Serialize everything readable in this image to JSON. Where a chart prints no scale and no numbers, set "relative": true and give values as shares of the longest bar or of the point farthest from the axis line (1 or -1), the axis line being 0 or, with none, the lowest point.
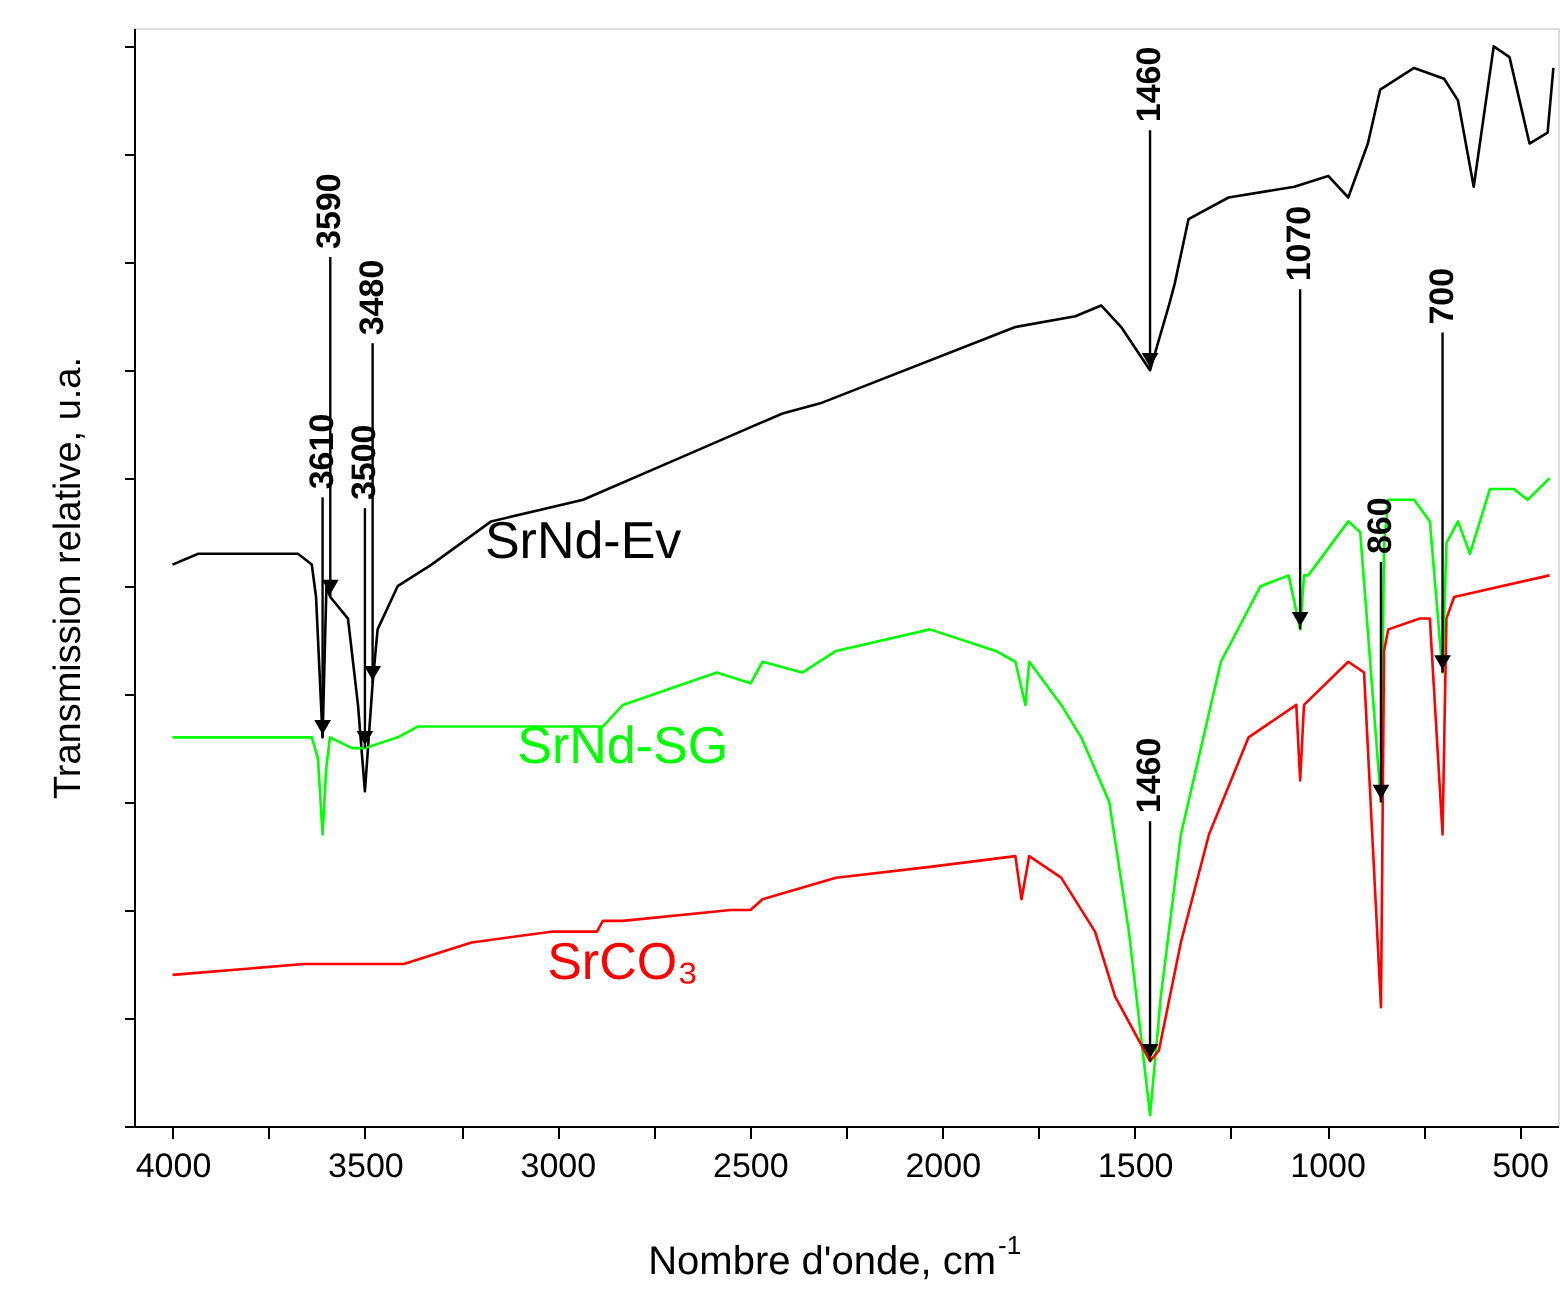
{
  "chart_data": {
    "type": "line",
    "relative": true,
    "xlabel": "Nombre d'onde, cm$^{-1}$",
    "ylabel": "Transmission relative, u.a.",
    "xlim": [
      4100,
      400
    ],
    "xticks": [
      4000,
      {
        "value": 3750,
        "label": null
      },
      3500,
      {
        "value": 3250,
        "label": null
      },
      3000,
      {
        "value": 2750,
        "label": null
      },
      2500,
      {
        "value": 2250,
        "label": null
      },
      2000,
      {
        "value": 1750,
        "label": null
      },
      1500,
      {
        "value": 1250,
        "label": null
      },
      1000,
      {
        "value": 750,
        "label": null
      },
      500
    ],
    "grid": false,
    "marker": "none",
    "line_style": "solid",
    "series": [
      {
        "name": "SrNd-Ev",
        "color": "#000000",
        "x": [
          4000,
          3933,
          3777,
          3674,
          3638,
          3627,
          3610,
          3600,
          3590,
          3544,
          3518,
          3500,
          3480,
          3467,
          3415,
          3327,
          3172,
          2933,
          2674,
          2415,
          2312,
          1810,
          1654,
          1587,
          1535,
          1460,
          1411,
          1396,
          1360,
          1256,
          1085,
          997,
          945,
          894,
          862,
          774,
          696,
          660,
          619,
          567,
          526,
          474,
          427,
          412
        ],
        "values": [
          0.52,
          0.53,
          0.53,
          0.53,
          0.52,
          0.49,
          0.36,
          0.5,
          0.49,
          0.47,
          0.39,
          0.31,
          0.41,
          0.46,
          0.5,
          0.52,
          0.56,
          0.58,
          0.62,
          0.66,
          0.67,
          0.74,
          0.75,
          0.76,
          0.74,
          0.7,
          0.76,
          0.78,
          0.84,
          0.86,
          0.87,
          0.88,
          0.86,
          0.91,
          0.96,
          0.98,
          0.97,
          0.95,
          0.87,
          1.0,
          0.99,
          0.91,
          0.92,
          0.98
        ]
      },
      {
        "name": "SrNd-SG",
        "color": "#00ff00",
        "x": [
          4000,
          3865,
          3710,
          3638,
          3622,
          3610,
          3601,
          3591,
          3534,
          3500,
          3415,
          3363,
          3016,
          2933,
          2882,
          2830,
          2586,
          2498,
          2467,
          2364,
          2276,
          2032,
          1861,
          1810,
          1784,
          1774,
          1691,
          1639,
          1566,
          1515,
          1460,
          1432,
          1380,
          1276,
          1173,
          1100,
          1070,
          1060,
          1049,
          945,
          914,
          860,
          852,
          841,
          774,
          733,
          700,
          690,
          660,
          629,
          577,
          515,
          479,
          422
        ],
        "values": [
          0.36,
          0.36,
          0.36,
          0.36,
          0.34,
          0.27,
          0.33,
          0.36,
          0.35,
          0.35,
          0.36,
          0.37,
          0.37,
          0.37,
          0.37,
          0.39,
          0.42,
          0.41,
          0.43,
          0.42,
          0.44,
          0.46,
          0.44,
          0.43,
          0.39,
          0.43,
          0.39,
          0.36,
          0.3,
          0.18,
          0.01,
          0.12,
          0.27,
          0.43,
          0.5,
          0.51,
          0.46,
          0.51,
          0.51,
          0.56,
          0.55,
          0.3,
          0.54,
          0.58,
          0.58,
          0.56,
          0.42,
          0.54,
          0.56,
          0.53,
          0.59,
          0.59,
          0.58,
          0.6
        ]
      },
      {
        "name": "SrCO₃",
        "color": "#ff0000",
        "x": [
          4000,
          3658,
          3451,
          3399,
          3223,
          3016,
          2897,
          2882,
          2830,
          2550,
          2498,
          2467,
          2276,
          2032,
          1810,
          1794,
          1774,
          1691,
          1603,
          1551,
          1460,
          1437,
          1380,
          1307,
          1204,
          1080,
          1070,
          1060,
          945,
          904,
          860,
          852,
          841,
          759,
          733,
          700,
          690,
          670,
          422
        ],
        "values": [
          0.14,
          0.15,
          0.15,
          0.15,
          0.17,
          0.18,
          0.18,
          0.19,
          0.19,
          0.2,
          0.2,
          0.21,
          0.23,
          0.24,
          0.25,
          0.21,
          0.25,
          0.23,
          0.18,
          0.12,
          0.06,
          0.07,
          0.17,
          0.27,
          0.36,
          0.39,
          0.32,
          0.39,
          0.43,
          0.42,
          0.11,
          0.44,
          0.46,
          0.47,
          0.47,
          0.27,
          0.47,
          0.49,
          0.51
        ]
      }
    ],
    "annotations": [
      {
        "text": "3610",
        "x": 3610,
        "y": 0.36
      },
      {
        "text": "3590",
        "x": 3590,
        "y": 0.49
      },
      {
        "text": "3500",
        "x": 3500,
        "y": 0.35
      },
      {
        "text": "3480",
        "x": 3480,
        "y": 0.41
      },
      {
        "text": "1460",
        "x": 1460,
        "y": 0.7
      },
      {
        "text": "1070",
        "x": 1070,
        "y": 0.46
      },
      {
        "text": "860",
        "x": 860,
        "y": 0.3
      },
      {
        "text": "700",
        "x": 700,
        "y": 0.42
      },
      {
        "text": "1460",
        "x": 1460,
        "y": 0.06
      }
    ]
  }
}
